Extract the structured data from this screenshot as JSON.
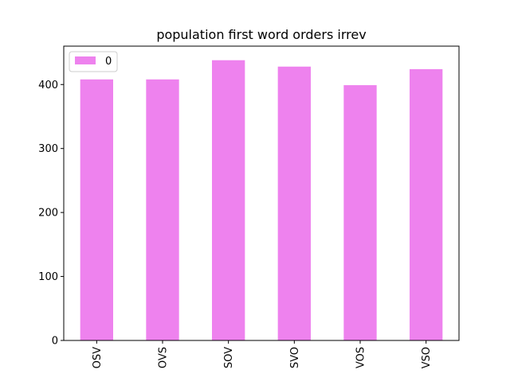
{
  "chart_data": {
    "type": "bar",
    "title": "population first word orders irrev",
    "xlabel": "",
    "ylabel": "",
    "categories": [
      "OSV",
      "OVS",
      "SOV",
      "SVO",
      "VOS",
      "VSO"
    ],
    "series": [
      {
        "name": "0",
        "values": [
          408,
          408,
          438,
          428,
          399,
          424
        ],
        "color": "#ee82ee"
      }
    ],
    "ylim": [
      0,
      460
    ],
    "yticks": [
      0,
      100,
      200,
      300,
      400
    ],
    "grid": false,
    "legend": "top-left",
    "x_tick_rotation": "vertical"
  }
}
